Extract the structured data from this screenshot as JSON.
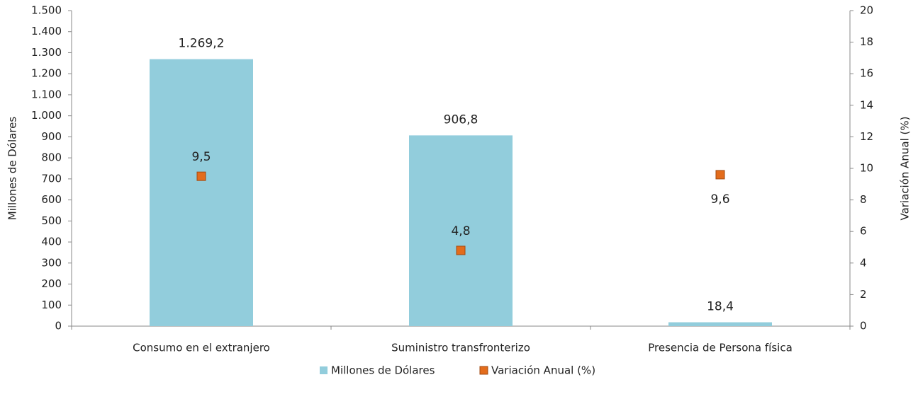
{
  "chart_data": {
    "type": "bar",
    "categories": [
      "Consumo en el extranjero",
      "Suministro transfronterizo",
      "Presencia de Persona física"
    ],
    "series": [
      {
        "name": "Millones de Dólares",
        "type": "bar",
        "color": "#92cddc",
        "values": [
          1269.2,
          906.8,
          18.4
        ],
        "value_labels": [
          "1.269,2",
          "906,8",
          "18,4"
        ]
      },
      {
        "name": "Variación Anual (%)",
        "type": "scatter",
        "axis": "y2",
        "color": "#e36c1c",
        "values": [
          9.5,
          4.8,
          9.6
        ],
        "value_labels": [
          "9,5",
          "4,8",
          "9,6"
        ]
      }
    ],
    "ylabel": "Millones de Dólares",
    "y2label": "Variación Anual (%)",
    "ylim": [
      0,
      1500
    ],
    "yticks": [
      0,
      100,
      200,
      300,
      400,
      500,
      600,
      700,
      800,
      900,
      {
        "value": 1000,
        "label": "1.000"
      },
      {
        "value": 1100,
        "label": "1.100"
      },
      {
        "value": 1200,
        "label": "1.200"
      },
      {
        "value": 1300,
        "label": "1.300"
      },
      {
        "value": 1400,
        "label": "1.400"
      },
      {
        "value": 1500,
        "label": "1.500"
      }
    ],
    "y2lim": [
      0,
      20
    ],
    "y2ticks": [
      0,
      2,
      4,
      6,
      8,
      10,
      12,
      14,
      16,
      18,
      20
    ],
    "legend": "bottom"
  }
}
